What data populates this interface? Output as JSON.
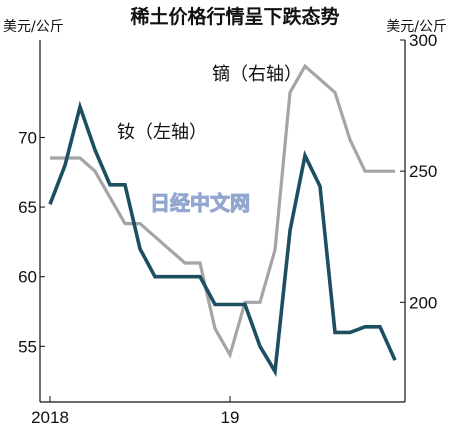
{
  "chart_data": {
    "type": "line",
    "title": "稀土价格行情呈下跌态势",
    "left_axis": {
      "unit": "美元/公斤",
      "ylim": [
        51,
        77
      ],
      "ticks": [
        55,
        60,
        65,
        70
      ]
    },
    "right_axis": {
      "unit": "美元/公斤",
      "ylim": [
        162,
        300
      ],
      "ticks": [
        200,
        250,
        300
      ]
    },
    "x_ticks": [
      "2018",
      "19"
    ],
    "x": [
      "2018-01",
      "2018-02",
      "2018-03",
      "2018-04",
      "2018-05",
      "2018-06",
      "2018-07",
      "2018-08",
      "2018-09",
      "2018-10",
      "2018-11",
      "2018-12",
      "2019-01",
      "2019-02",
      "2019-03",
      "2019-04",
      "2019-05",
      "2019-06",
      "2019-07",
      "2019-08",
      "2019-09",
      "2019-10",
      "2019-11",
      "2019-12"
    ],
    "series": [
      {
        "name": "钕（左轴）",
        "axis": "left",
        "color": "#1d4f61",
        "values": [
          65.2,
          68.0,
          72.2,
          69.1,
          66.6,
          66.6,
          62.0,
          60.0,
          60.0,
          60.0,
          60.0,
          58.0,
          58.0,
          58.0,
          55.0,
          53.2,
          63.3,
          68.7,
          66.5,
          56.0,
          56.0,
          56.4,
          56.4,
          54.0
        ]
      },
      {
        "name": "镝（右轴）",
        "axis": "right",
        "color": "#a5a5a5",
        "values": [
          255,
          255,
          255,
          250,
          240,
          230,
          230,
          225,
          220,
          215,
          215,
          190,
          180,
          200,
          200,
          220,
          280,
          290,
          285,
          280,
          262,
          250,
          250,
          250
        ]
      }
    ],
    "annotations": [
      "钕（左轴）",
      "镝（右轴）"
    ],
    "watermark": "日经中文网",
    "grid": false,
    "legend": "inline labels"
  }
}
